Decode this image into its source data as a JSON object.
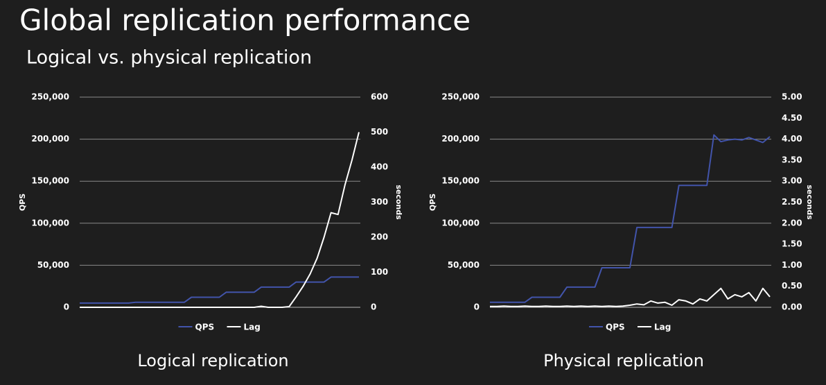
{
  "title": "Global replication performance",
  "subtitle": "Logical vs. physical replication",
  "chart_data": [
    {
      "type": "line",
      "title": "Logical replication",
      "ylabel": "QPS",
      "y2label": "seconds",
      "ylim": [
        0,
        250000
      ],
      "yticks": [
        0,
        {
          "value": 50000,
          "label": "50,000"
        },
        {
          "value": 100000,
          "label": "100,000"
        },
        {
          "value": 150000,
          "label": "150,000"
        },
        {
          "value": 200000,
          "label": "200,000"
        },
        {
          "value": 250000,
          "label": "250,000"
        }
      ],
      "y2lim": [
        0,
        600
      ],
      "y2ticks": [
        0,
        100,
        200,
        300,
        400,
        500,
        600
      ],
      "grid": true,
      "legend": "bottom",
      "series": [
        {
          "name": "QPS",
          "color": "#4254ab",
          "values": [
            5000,
            5000,
            5000,
            5000,
            5000,
            5000,
            5000,
            5000,
            6000,
            6000,
            6000,
            6000,
            6000,
            6000,
            6000,
            6000,
            12000,
            12000,
            12000,
            12000,
            12000,
            18000,
            18000,
            18000,
            18000,
            18000,
            24000,
            24000,
            24000,
            24000,
            24000,
            30000,
            30000,
            30000,
            30000,
            30000,
            36000,
            36000,
            36000,
            36000,
            36000
          ]
        },
        {
          "name": "Lag",
          "color": "#ffffff",
          "axis": "y2",
          "values": [
            0,
            0,
            0,
            0,
            0,
            0,
            0,
            0,
            0,
            0,
            0,
            0,
            0,
            0,
            0,
            0,
            0,
            0,
            0,
            0,
            0,
            0,
            0,
            0,
            0,
            0,
            3,
            0,
            0,
            0,
            2,
            30,
            60,
            95,
            140,
            200,
            270,
            265,
            350,
            420,
            500
          ]
        }
      ]
    },
    {
      "type": "line",
      "title": "Physical replication",
      "ylabel": "QPS",
      "y2label": "seconds",
      "ylim": [
        0,
        250000
      ],
      "yticks": [
        0,
        {
          "value": 50000,
          "label": "50,000"
        },
        {
          "value": 100000,
          "label": "100,000"
        },
        {
          "value": 150000,
          "label": "150,000"
        },
        {
          "value": 200000,
          "label": "200,000"
        },
        {
          "value": 250000,
          "label": "250,000"
        }
      ],
      "y2lim": [
        0,
        5
      ],
      "y2ticks": [
        {
          "value": 0,
          "label": "0.00"
        },
        {
          "value": 0.5,
          "label": "0.50"
        },
        {
          "value": 1,
          "label": "1.00"
        },
        {
          "value": 1.5,
          "label": "1.50"
        },
        {
          "value": 2,
          "label": "2.00"
        },
        {
          "value": 2.5,
          "label": "2.50"
        },
        {
          "value": 3,
          "label": "3.00"
        },
        {
          "value": 3.5,
          "label": "3.50"
        },
        {
          "value": 4,
          "label": "4.00"
        },
        {
          "value": 4.5,
          "label": "4.50"
        },
        {
          "value": 5,
          "label": "5.00"
        }
      ],
      "grid": true,
      "legend": "bottom",
      "series": [
        {
          "name": "QPS",
          "color": "#4254ab",
          "values": [
            6000,
            6000,
            6000,
            6000,
            6000,
            6000,
            12000,
            12000,
            12000,
            12000,
            12000,
            24000,
            24000,
            24000,
            24000,
            24000,
            47000,
            47000,
            47000,
            47000,
            47000,
            95000,
            95000,
            95000,
            95000,
            95000,
            95000,
            145000,
            145000,
            145000,
            145000,
            145000,
            205000,
            197000,
            199000,
            200000,
            199000,
            202000,
            199000,
            196000,
            203000
          ]
        },
        {
          "name": "Lag",
          "color": "#ffffff",
          "axis": "y2",
          "values": [
            0.02,
            0.02,
            0.03,
            0.02,
            0.02,
            0.03,
            0.02,
            0.02,
            0.03,
            0.02,
            0.02,
            0.03,
            0.02,
            0.03,
            0.02,
            0.03,
            0.02,
            0.03,
            0.02,
            0.03,
            0.05,
            0.08,
            0.06,
            0.15,
            0.1,
            0.12,
            0.05,
            0.18,
            0.15,
            0.08,
            0.2,
            0.15,
            0.3,
            0.45,
            0.2,
            0.3,
            0.25,
            0.35,
            0.15,
            0.45,
            0.25
          ]
        }
      ]
    }
  ]
}
